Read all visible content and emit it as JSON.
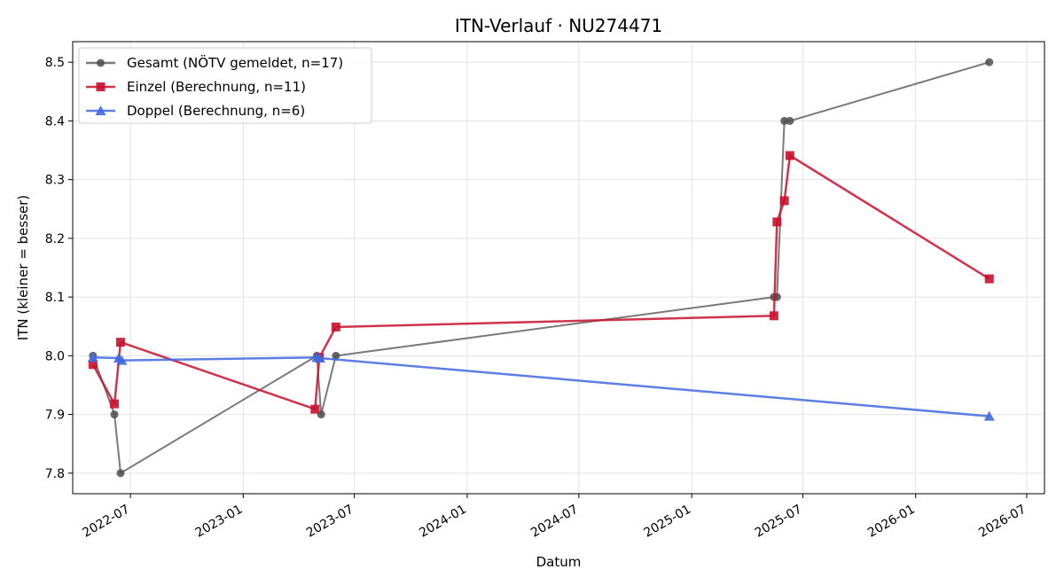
{
  "chart_data": {
    "type": "line",
    "title": "ITN-Verlauf · NU274471",
    "xlabel": "Datum",
    "ylabel": "ITN  (kleiner = besser)",
    "x_axis_type": "date",
    "xlim": [
      "2022-03-29",
      "2026-07-30"
    ],
    "ylim": [
      7.765,
      8.535
    ],
    "x_ticks": [
      "2022-07",
      "2023-01",
      "2023-07",
      "2024-01",
      "2024-07",
      "2025-01",
      "2025-07",
      "2026-01",
      "2026-07"
    ],
    "y_ticks": [
      7.8,
      7.9,
      8.0,
      8.1,
      8.2,
      8.3,
      8.4,
      8.5
    ],
    "grid": true,
    "legend_position": "top-left",
    "series": [
      {
        "name": "Gesamt (NÖTV gemeldet, n=17)",
        "color": "#4d4d4d",
        "marker": "circle",
        "points": [
          {
            "x": "2022-05-01",
            "y": 8.0
          },
          {
            "x": "2022-06-05",
            "y": 7.9
          },
          {
            "x": "2022-06-15",
            "y": 7.8
          },
          {
            "x": "2023-05-01",
            "y": 8.0
          },
          {
            "x": "2023-05-08",
            "y": 7.9
          },
          {
            "x": "2023-06-01",
            "y": 8.0
          },
          {
            "x": "2025-05-15",
            "y": 8.1
          },
          {
            "x": "2025-05-20",
            "y": 8.1
          },
          {
            "x": "2025-06-01",
            "y": 8.4
          },
          {
            "x": "2025-06-10",
            "y": 8.4
          },
          {
            "x": "2026-05-01",
            "y": 8.5
          }
        ]
      },
      {
        "name": "Einzel (Berechnung, n=11)",
        "color": "#c8102e",
        "marker": "square",
        "points": [
          {
            "x": "2022-05-01",
            "y": 7.985
          },
          {
            "x": "2022-06-05",
            "y": 7.918
          },
          {
            "x": "2022-06-15",
            "y": 8.023
          },
          {
            "x": "2023-04-28",
            "y": 7.909
          },
          {
            "x": "2023-05-05",
            "y": 7.997
          },
          {
            "x": "2023-06-01",
            "y": 8.049
          },
          {
            "x": "2025-05-15",
            "y": 8.068
          },
          {
            "x": "2025-05-20",
            "y": 8.228
          },
          {
            "x": "2025-06-01",
            "y": 8.264
          },
          {
            "x": "2025-06-10",
            "y": 8.341
          },
          {
            "x": "2026-05-01",
            "y": 8.131
          }
        ]
      },
      {
        "name": "Doppel (Berechnung, n=6)",
        "color": "#4169e1",
        "marker": "triangle",
        "points": [
          {
            "x": "2022-05-01",
            "y": 7.997
          },
          {
            "x": "2022-06-12",
            "y": 7.996
          },
          {
            "x": "2022-06-17",
            "y": 7.992
          },
          {
            "x": "2023-05-01",
            "y": 7.997
          },
          {
            "x": "2023-05-06",
            "y": 7.996
          },
          {
            "x": "2026-05-01",
            "y": 7.897
          }
        ]
      }
    ]
  }
}
